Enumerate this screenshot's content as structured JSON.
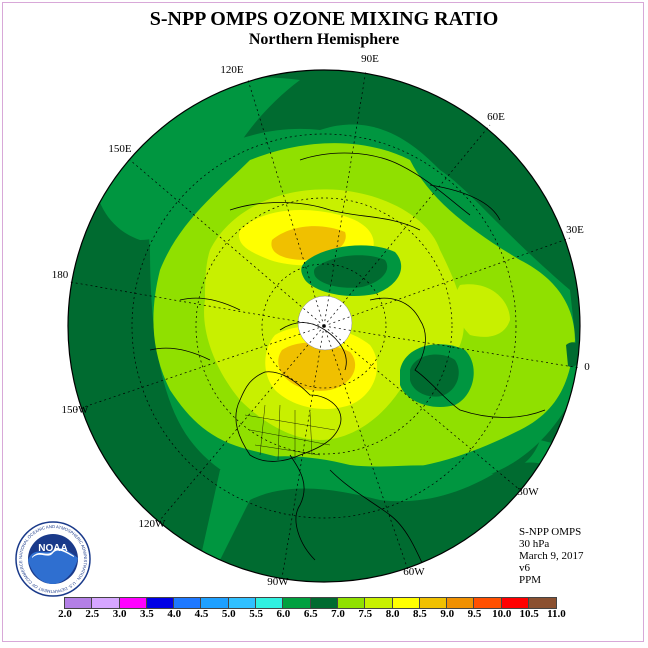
{
  "title": "S-NPP OMPS OZONE MIXING RATIO",
  "subtitle": "Northern Hemisphere",
  "logo_text": "NOAA",
  "logo_ring_text": "NATIONAL OCEANIC AND ATMOSPHERIC ADMINISTRATION · U.S. DEPARTMENT OF COMMERCE",
  "info": {
    "instrument": "S-NPP OMPS",
    "pressure": "30 hPa",
    "date": "March 9, 2017",
    "version": "v6",
    "units": "PPM"
  },
  "longitude_labels": {
    "lon_90e": "90E",
    "lon_120e": "120E",
    "lon_60e": "60E",
    "lon_150e": "150E",
    "lon_30e": "30E",
    "lon_180": "180",
    "lon_0": "0",
    "lon_150w": "150W",
    "lon_30w": "30W",
    "lon_120w": "120W",
    "lon_60w": "60W",
    "lon_90w": "90W"
  },
  "colorbar": {
    "colors": [
      "#b37fe6",
      "#d6a6ff",
      "#ff00ff",
      "#0000e6",
      "#1e78ff",
      "#1ea0ff",
      "#30c0ff",
      "#30f0e0",
      "#00a040",
      "#006b30",
      "#90e000",
      "#c8f000",
      "#ffff00",
      "#f0c000",
      "#f09000",
      "#ff5000",
      "#ff0000",
      "#8b5030"
    ],
    "labels": [
      "2.0",
      "2.5",
      "3.0",
      "3.5",
      "4.0",
      "4.5",
      "5.0",
      "5.5",
      "6.0",
      "6.5",
      "7.0",
      "7.5",
      "8.0",
      "8.5",
      "9.0",
      "9.5",
      "10.0",
      "10.5",
      "11.0"
    ]
  },
  "map_colors": {
    "dark_green": "#006b30",
    "mid_green": "#009640",
    "light_green": "#90e000",
    "yellow_green": "#c8f000",
    "yellow": "#ffff00",
    "orange": "#f0c000",
    "missing": "#ffffff"
  }
}
